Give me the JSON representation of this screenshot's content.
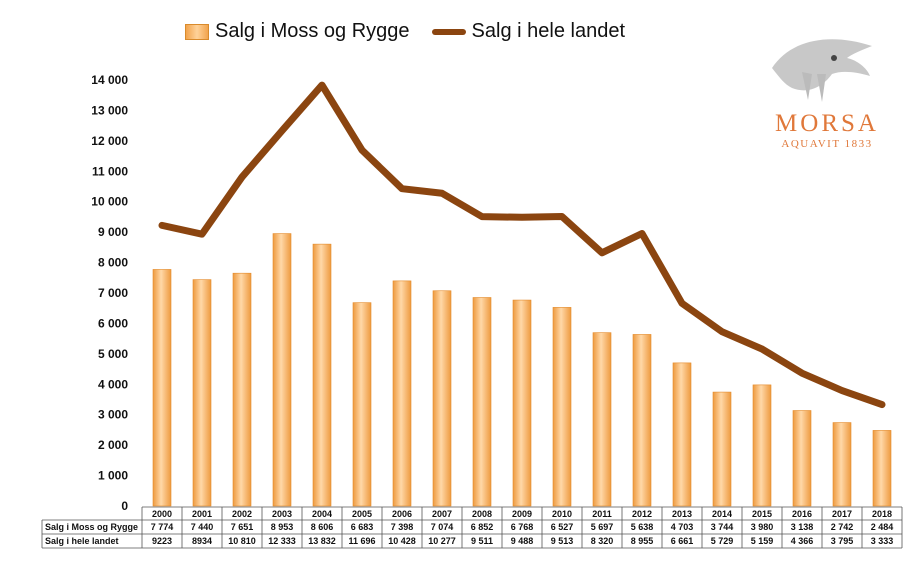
{
  "chart_data": {
    "type": "bar+line",
    "categories": [
      "2000",
      "2001",
      "2002",
      "2003",
      "2004",
      "2005",
      "2006",
      "2007",
      "2008",
      "2009",
      "2010",
      "2011",
      "2012",
      "2013",
      "2014",
      "2015",
      "2016",
      "2017",
      "2018"
    ],
    "series": [
      {
        "name": "Salg i Moss og Rygge",
        "type": "bar",
        "values": [
          7774,
          7440,
          7651,
          8953,
          8606,
          6683,
          7398,
          7074,
          6852,
          6768,
          6527,
          5697,
          5638,
          4703,
          3744,
          3980,
          3138,
          2742,
          2484
        ],
        "labels": [
          "7 774",
          "7 440",
          "7 651",
          "8 953",
          "8 606",
          "6 683",
          "7 398",
          "7 074",
          "6 852",
          "6 768",
          "6 527",
          "5 697",
          "5 638",
          "4 703",
          "3 744",
          "3 980",
          "3 138",
          "2 742",
          "2 484"
        ]
      },
      {
        "name": "Salg i hele landet",
        "type": "line",
        "values": [
          9223,
          8934,
          10810,
          12333,
          13832,
          11696,
          10428,
          10277,
          9511,
          9488,
          9513,
          8320,
          8955,
          6661,
          5729,
          5159,
          4366,
          3795,
          3333
        ],
        "labels": [
          "9223",
          "8934",
          "10 810",
          "12 333",
          "13 832",
          "11 696",
          "10 428",
          "10 277",
          "9 511",
          "9 488",
          "9 513",
          "8 320",
          "8 955",
          "6 661",
          "5 729",
          "5 159",
          "4 366",
          "3 795",
          "3 333"
        ]
      }
    ],
    "ylim": [
      0,
      14000
    ],
    "yticks": [
      "0",
      "1 000",
      "2 000",
      "3 000",
      "4 000",
      "5 000",
      "6 000",
      "7 000",
      "8 000",
      "9 000",
      "10 000",
      "11 000",
      "12 000",
      "13 000",
      "14 000"
    ],
    "legend_position": "top",
    "grid": false,
    "colors": {
      "bar": "#f2a44c",
      "bar_highlight": "#ffd8a8",
      "line": "#8b4510"
    }
  },
  "legend": {
    "bar_label": "Salg i Moss og Rygge",
    "line_label": "Salg i hele landet"
  },
  "logo": {
    "word": "MORSA",
    "sub": "AQUAVIT 1833"
  }
}
